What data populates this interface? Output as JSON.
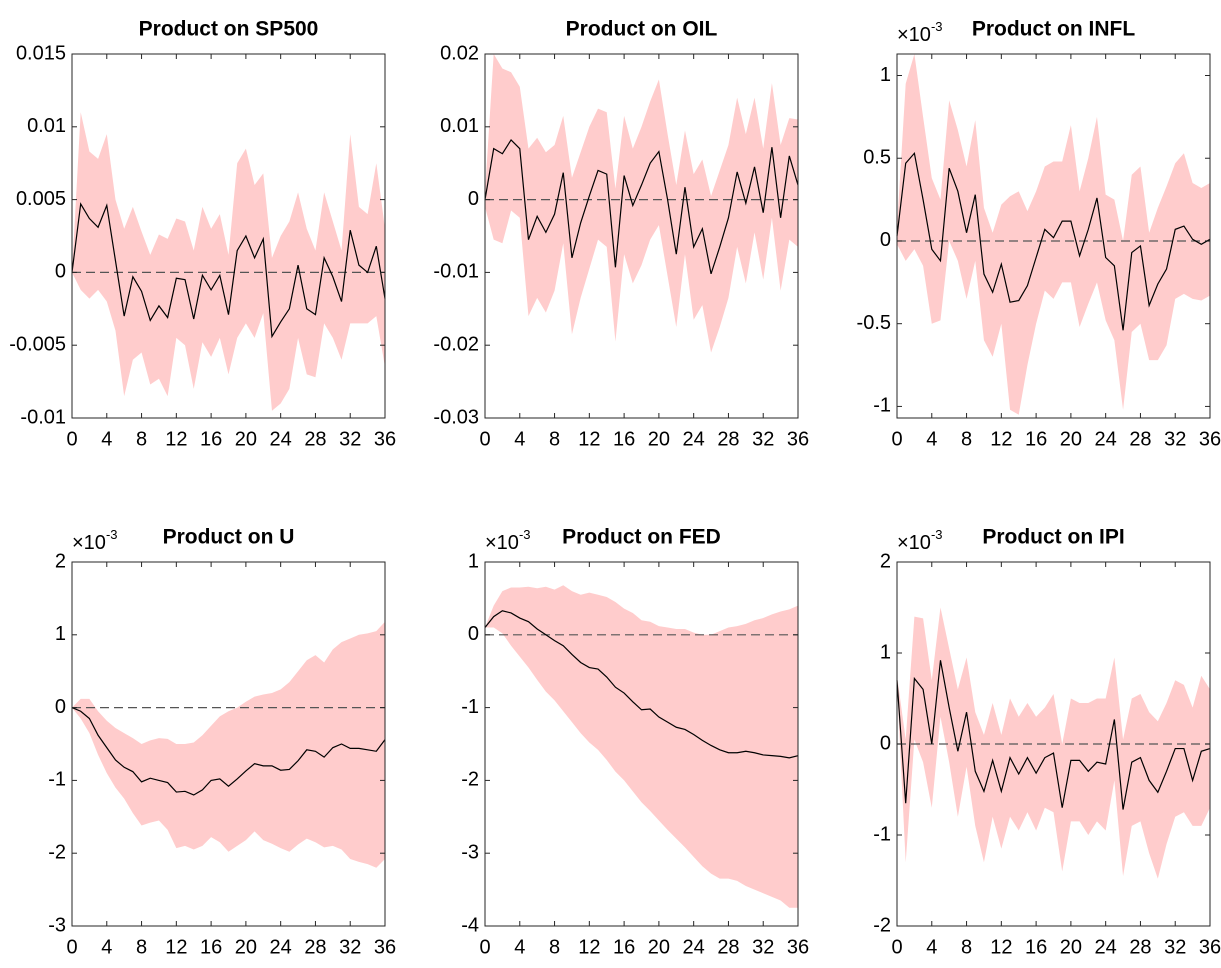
{
  "chart_data": [
    {
      "type": "line",
      "title": "Product on SP500",
      "x": [
        0,
        1,
        2,
        3,
        4,
        5,
        6,
        7,
        8,
        9,
        10,
        11,
        12,
        13,
        14,
        15,
        16,
        17,
        18,
        19,
        20,
        21,
        22,
        23,
        24,
        25,
        26,
        27,
        28,
        29,
        30,
        31,
        32,
        33,
        34,
        35,
        36
      ],
      "xlim": [
        0,
        36
      ],
      "xticks": [
        0,
        4,
        8,
        12,
        16,
        20,
        24,
        28,
        32,
        36
      ],
      "ylim": [
        -0.01,
        0.015
      ],
      "yticks": [
        -0.01,
        -0.005,
        0,
        0.005,
        0.01,
        0.015
      ],
      "reference_line": 0,
      "series": [
        {
          "color": "#000000",
          "values": [
            0,
            0.0047,
            0.0037,
            0.0031,
            0.0046,
            0.0008,
            -0.003,
            -0.0003,
            -0.0013,
            -0.0033,
            -0.0023,
            -0.0031,
            -0.0004,
            -0.0005,
            -0.0032,
            -0.0002,
            -0.0012,
            -0.0002,
            -0.0029,
            0.0015,
            0.0025,
            0.001,
            0.0023,
            -0.0044,
            -0.0034,
            -0.0025,
            0.0005,
            -0.0025,
            -0.0029,
            0.001,
            -0.0003,
            -0.002,
            0.0029,
            0.0005,
            0,
            0.0018,
            -0.0018
          ]
        }
      ],
      "band": {
        "color": "#ffcccc",
        "upper": [
          0,
          0.011,
          0.0083,
          0.0078,
          0.0095,
          0.005,
          0.003,
          0.0045,
          0.0028,
          0.0012,
          0.0026,
          0.0023,
          0.0037,
          0.0035,
          0.0015,
          0.0045,
          0.003,
          0.004,
          0.0012,
          0.0075,
          0.0085,
          0.006,
          0.0068,
          0.001,
          0.0025,
          0.0035,
          0.0055,
          0.003,
          0.0015,
          0.0055,
          0.0035,
          0.0015,
          0.0095,
          0.0045,
          0.004,
          0.0075,
          0.003
        ],
        "lower": [
          0,
          -0.0012,
          -0.0018,
          -0.0012,
          -0.002,
          -0.004,
          -0.0085,
          -0.006,
          -0.0055,
          -0.0077,
          -0.0073,
          -0.0085,
          -0.0045,
          -0.005,
          -0.008,
          -0.0048,
          -0.0058,
          -0.0045,
          -0.007,
          -0.0045,
          -0.0035,
          -0.0045,
          -0.0028,
          -0.0095,
          -0.009,
          -0.008,
          -0.0045,
          -0.007,
          -0.0072,
          -0.0035,
          -0.0045,
          -0.006,
          -0.0035,
          -0.0035,
          -0.0035,
          -0.003,
          -0.0065
        ]
      }
    },
    {
      "type": "line",
      "title": "Product on OIL",
      "x": [
        0,
        1,
        2,
        3,
        4,
        5,
        6,
        7,
        8,
        9,
        10,
        11,
        12,
        13,
        14,
        15,
        16,
        17,
        18,
        19,
        20,
        21,
        22,
        23,
        24,
        25,
        26,
        27,
        28,
        29,
        30,
        31,
        32,
        33,
        34,
        35,
        36
      ],
      "xlim": [
        0,
        36
      ],
      "xticks": [
        0,
        4,
        8,
        12,
        16,
        20,
        24,
        28,
        32,
        36
      ],
      "ylim": [
        -0.03,
        0.02
      ],
      "yticks": [
        -0.03,
        -0.02,
        -0.01,
        0,
        0.01,
        0.02
      ],
      "reference_line": 0,
      "series": [
        {
          "color": "#000000",
          "values": [
            0,
            0.007,
            0.0063,
            0.0082,
            0.007,
            -0.0055,
            -0.0023,
            -0.0045,
            -0.002,
            0.0037,
            -0.008,
            -0.0032,
            0.0005,
            0.004,
            0.0035,
            -0.0093,
            0.0033,
            -0.0008,
            0.002,
            0.005,
            0.0066,
            0,
            -0.0075,
            0.0017,
            -0.0065,
            -0.004,
            -0.0102,
            -0.0065,
            -0.0025,
            0.0038,
            -0.0005,
            0.0045,
            -0.0018,
            0.0072,
            -0.0025,
            0.006,
            0.002
          ]
        }
      ],
      "band": {
        "color": "#ffcccc",
        "upper": [
          0.001,
          0.02,
          0.018,
          0.0175,
          0.0155,
          0.007,
          0.0085,
          0.0065,
          0.0075,
          0.0115,
          0.003,
          0.0065,
          0.01,
          0.0125,
          0.012,
          0.0015,
          0.0115,
          0.007,
          0.01,
          0.0135,
          0.0165,
          0.009,
          0.002,
          0.0095,
          0.0035,
          0.0055,
          0.0005,
          0.004,
          0.0075,
          0.014,
          0.009,
          0.014,
          0.007,
          0.016,
          0.0075,
          0.0112,
          0.011
        ],
        "lower": [
          -0.001,
          -0.0055,
          -0.006,
          -0.0015,
          -0.0025,
          -0.016,
          -0.0135,
          -0.0155,
          -0.0125,
          -0.006,
          -0.0185,
          -0.0135,
          -0.0095,
          -0.0055,
          -0.0065,
          -0.0195,
          -0.0075,
          -0.0115,
          -0.009,
          -0.0055,
          -0.0035,
          -0.0105,
          -0.0175,
          -0.0075,
          -0.0165,
          -0.0145,
          -0.021,
          -0.0175,
          -0.0135,
          -0.0065,
          -0.0115,
          -0.0045,
          -0.011,
          -0.0025,
          -0.0125,
          -0.0055,
          -0.0065
        ]
      }
    },
    {
      "type": "line",
      "title": "Product on INFL",
      "axis_multiplier": "×10",
      "axis_exponent": "-3",
      "x": [
        0,
        1,
        2,
        3,
        4,
        5,
        6,
        7,
        8,
        9,
        10,
        11,
        12,
        13,
        14,
        15,
        16,
        17,
        18,
        19,
        20,
        21,
        22,
        23,
        24,
        25,
        26,
        27,
        28,
        29,
        30,
        31,
        32,
        33,
        34,
        35,
        36
      ],
      "xlim": [
        0,
        36
      ],
      "xticks": [
        0,
        4,
        8,
        12,
        16,
        20,
        24,
        28,
        32,
        36
      ],
      "ylim": [
        -1.07,
        1.13
      ],
      "yticks": [
        -1,
        -0.5,
        0,
        0.5,
        1
      ],
      "reference_line": 0,
      "series": [
        {
          "color": "#000000",
          "values": [
            0.03,
            0.47,
            0.53,
            0.25,
            -0.05,
            -0.12,
            0.44,
            0.3,
            0.05,
            0.28,
            -0.2,
            -0.31,
            -0.14,
            -0.37,
            -0.36,
            -0.27,
            -0.1,
            0.07,
            0.02,
            0.12,
            0.12,
            -0.09,
            0.07,
            0.26,
            -0.1,
            -0.15,
            -0.54,
            -0.07,
            -0.03,
            -0.39,
            -0.26,
            -0.17,
            0.07,
            0.09,
            0.01,
            -0.02,
            0.01
          ]
        }
      ],
      "band": {
        "color": "#ffcccc",
        "upper": [
          0.08,
          0.95,
          1.13,
          0.75,
          0.38,
          0.25,
          0.85,
          0.67,
          0.45,
          0.73,
          0.2,
          0.05,
          0.22,
          0.27,
          0.3,
          0.18,
          0.3,
          0.45,
          0.48,
          0.48,
          0.7,
          0.3,
          0.5,
          0.75,
          0.28,
          0.25,
          0,
          0.4,
          0.45,
          0.05,
          0.2,
          0.33,
          0.47,
          0.53,
          0.35,
          0.32,
          0.35
        ],
        "lower": [
          -0.02,
          -0.12,
          -0.05,
          -0.15,
          -0.5,
          -0.48,
          0,
          -0.12,
          -0.35,
          -0.12,
          -0.6,
          -0.7,
          -0.5,
          -1.02,
          -1.05,
          -0.75,
          -0.5,
          -0.3,
          -0.35,
          -0.25,
          -0.25,
          -0.52,
          -0.38,
          -0.25,
          -0.48,
          -0.6,
          -1.02,
          -0.55,
          -0.5,
          -0.72,
          -0.72,
          -0.63,
          -0.35,
          -0.32,
          -0.35,
          -0.36,
          -0.33
        ]
      }
    },
    {
      "type": "line",
      "title": "Product on U",
      "axis_multiplier": "×10",
      "axis_exponent": "-3",
      "x": [
        0,
        1,
        2,
        3,
        4,
        5,
        6,
        7,
        8,
        9,
        10,
        11,
        12,
        13,
        14,
        15,
        16,
        17,
        18,
        19,
        20,
        21,
        22,
        23,
        24,
        25,
        26,
        27,
        28,
        29,
        30,
        31,
        32,
        33,
        34,
        35,
        36
      ],
      "xlim": [
        0,
        36
      ],
      "xticks": [
        0,
        4,
        8,
        12,
        16,
        20,
        24,
        28,
        32,
        36
      ],
      "ylim": [
        -3,
        2
      ],
      "yticks": [
        -3,
        -2,
        -1,
        0,
        1,
        2
      ],
      "reference_line": 0,
      "series": [
        {
          "color": "#000000",
          "values": [
            0,
            -0.05,
            -0.15,
            -0.38,
            -0.55,
            -0.72,
            -0.82,
            -0.88,
            -1.02,
            -0.97,
            -1,
            -1.03,
            -1.16,
            -1.15,
            -1.2,
            -1.13,
            -1,
            -0.98,
            -1.08,
            -0.98,
            -0.87,
            -0.77,
            -0.8,
            -0.8,
            -0.86,
            -0.85,
            -0.73,
            -0.58,
            -0.6,
            -0.68,
            -0.55,
            -0.5,
            -0.56,
            -0.56,
            -0.58,
            -0.6,
            -0.44
          ]
        }
      ],
      "band": {
        "color": "#ffcccc",
        "upper": [
          0,
          0.12,
          0.12,
          -0.05,
          -0.18,
          -0.28,
          -0.35,
          -0.42,
          -0.5,
          -0.45,
          -0.42,
          -0.43,
          -0.5,
          -0.5,
          -0.48,
          -0.38,
          -0.25,
          -0.12,
          -0.05,
          0,
          0.08,
          0.15,
          0.18,
          0.2,
          0.25,
          0.35,
          0.5,
          0.65,
          0.72,
          0.62,
          0.8,
          0.9,
          0.95,
          1,
          1.02,
          1.05,
          1.18
        ],
        "lower": [
          0,
          -0.15,
          -0.35,
          -0.65,
          -0.9,
          -1.1,
          -1.25,
          -1.45,
          -1.62,
          -1.58,
          -1.55,
          -1.68,
          -1.93,
          -1.9,
          -1.95,
          -1.9,
          -1.78,
          -1.85,
          -1.98,
          -1.9,
          -1.82,
          -1.7,
          -1.82,
          -1.87,
          -1.93,
          -1.98,
          -1.88,
          -1.8,
          -1.85,
          -1.92,
          -1.9,
          -1.95,
          -2.08,
          -2.12,
          -2.15,
          -2.2,
          -2.08
        ]
      }
    },
    {
      "type": "line",
      "title": "Product on FED",
      "axis_multiplier": "×10",
      "axis_exponent": "-3",
      "x": [
        0,
        1,
        2,
        3,
        4,
        5,
        6,
        7,
        8,
        9,
        10,
        11,
        12,
        13,
        14,
        15,
        16,
        17,
        18,
        19,
        20,
        21,
        22,
        23,
        24,
        25,
        26,
        27,
        28,
        29,
        30,
        31,
        32,
        33,
        34,
        35,
        36
      ],
      "xlim": [
        0,
        36
      ],
      "xticks": [
        0,
        4,
        8,
        12,
        16,
        20,
        24,
        28,
        32,
        36
      ],
      "ylim": [
        -4,
        1
      ],
      "yticks": [
        -4,
        -3,
        -2,
        -1,
        0,
        1
      ],
      "reference_line": 0,
      "series": [
        {
          "color": "#000000",
          "values": [
            0.1,
            0.25,
            0.33,
            0.3,
            0.23,
            0.18,
            0.08,
            0,
            -0.08,
            -0.15,
            -0.27,
            -0.38,
            -0.45,
            -0.47,
            -0.58,
            -0.72,
            -0.8,
            -0.92,
            -1.03,
            -1.02,
            -1.13,
            -1.2,
            -1.27,
            -1.3,
            -1.37,
            -1.45,
            -1.52,
            -1.58,
            -1.62,
            -1.62,
            -1.6,
            -1.62,
            -1.65,
            -1.66,
            -1.67,
            -1.69,
            -1.66
          ]
        }
      ],
      "band": {
        "color": "#ffcccc",
        "upper": [
          0.1,
          0.4,
          0.6,
          0.65,
          0.65,
          0.66,
          0.64,
          0.66,
          0.62,
          0.68,
          0.6,
          0.55,
          0.58,
          0.55,
          0.52,
          0.45,
          0.36,
          0.3,
          0.2,
          0.18,
          0.12,
          0.1,
          0.08,
          0.08,
          0.03,
          0,
          0,
          0.05,
          0.1,
          0.12,
          0.15,
          0.2,
          0.23,
          0.28,
          0.32,
          0.35,
          0.4
        ],
        "lower": [
          0.1,
          0.1,
          0.02,
          -0.15,
          -0.3,
          -0.45,
          -0.62,
          -0.78,
          -0.9,
          -1.05,
          -1.2,
          -1.35,
          -1.48,
          -1.58,
          -1.72,
          -1.88,
          -2,
          -2.15,
          -2.3,
          -2.42,
          -2.55,
          -2.68,
          -2.8,
          -2.92,
          -3.05,
          -3.18,
          -3.28,
          -3.35,
          -3.35,
          -3.38,
          -3.45,
          -3.5,
          -3.55,
          -3.6,
          -3.65,
          -3.75,
          -3.75
        ]
      }
    },
    {
      "type": "line",
      "title": "Product on IPI",
      "axis_multiplier": "×10",
      "axis_exponent": "-3",
      "x": [
        0,
        1,
        2,
        3,
        4,
        5,
        6,
        7,
        8,
        9,
        10,
        11,
        12,
        13,
        14,
        15,
        16,
        17,
        18,
        19,
        20,
        21,
        22,
        23,
        24,
        25,
        26,
        27,
        28,
        29,
        30,
        31,
        32,
        33,
        34,
        35,
        36
      ],
      "xlim": [
        0,
        36
      ],
      "xticks": [
        0,
        4,
        8,
        12,
        16,
        20,
        24,
        28,
        32,
        36
      ],
      "ylim": [
        -2,
        2
      ],
      "yticks": [
        -2,
        -1,
        0,
        1,
        2
      ],
      "reference_line": 0,
      "series": [
        {
          "color": "#000000",
          "values": [
            0.7,
            -0.65,
            0.72,
            0.6,
            0,
            0.92,
            0.4,
            -0.08,
            0.35,
            -0.3,
            -0.52,
            -0.18,
            -0.52,
            -0.15,
            -0.33,
            -0.15,
            -0.32,
            -0.15,
            -0.1,
            -0.7,
            -0.18,
            -0.18,
            -0.3,
            -0.2,
            -0.22,
            0.27,
            -0.72,
            -0.2,
            -0.15,
            -0.4,
            -0.53,
            -0.3,
            -0.05,
            -0.05,
            -0.4,
            -0.08,
            -0.05
          ]
        }
      ],
      "band": {
        "color": "#ffcccc",
        "upper": [
          0.75,
          0.05,
          1.4,
          1.38,
          0.7,
          1.5,
          1.05,
          0.6,
          0.95,
          0.35,
          0.1,
          0.45,
          0.1,
          0.5,
          0.3,
          0.45,
          0.3,
          0.4,
          0.55,
          0,
          0.5,
          0.45,
          0.45,
          0.5,
          0.5,
          0.95,
          0.05,
          0.5,
          0.55,
          0.35,
          0.25,
          0.45,
          0.7,
          0.65,
          0.4,
          0.75,
          0.6
        ],
        "lower": [
          0.65,
          -1.3,
          0.05,
          -0.2,
          -0.7,
          0.3,
          -0.2,
          -0.8,
          -0.25,
          -0.9,
          -1.3,
          -0.8,
          -1.15,
          -0.8,
          -0.95,
          -0.75,
          -0.95,
          -0.7,
          -0.75,
          -1.4,
          -0.85,
          -0.85,
          -1,
          -0.85,
          -0.95,
          -0.4,
          -1.45,
          -0.9,
          -0.85,
          -1.2,
          -1.48,
          -1.1,
          -0.8,
          -0.75,
          -0.9,
          -0.9,
          -0.7
        ]
      }
    }
  ]
}
